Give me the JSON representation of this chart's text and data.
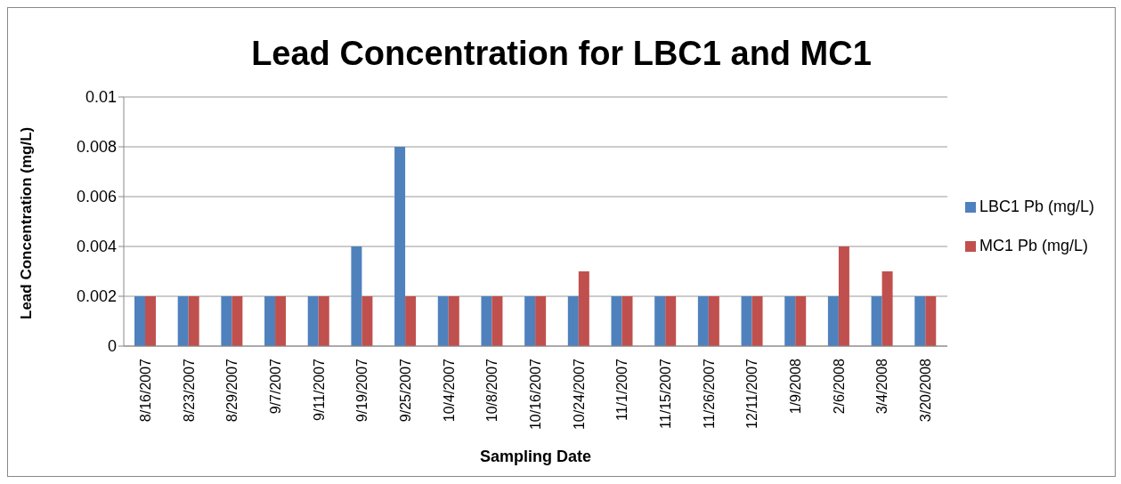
{
  "chart_data": {
    "type": "bar",
    "title": "Lead Concentration for LBC1 and MC1",
    "xlabel": "Sampling Date",
    "ylabel": "Lead Concentration  (mg/L)",
    "categories": [
      "8/16/2007",
      "8/23/2007",
      "8/29/2007",
      "9/7/2007",
      "9/11/2007",
      "9/19/2007",
      "9/25/2007",
      "10/4/2007",
      "10/8/2007",
      "10/16/2007",
      "10/24/2007",
      "11/1/2007",
      "11/15/2007",
      "11/26/2007",
      "12/11/2007",
      "1/9/2008",
      "2/6/2008",
      "3/4/2008",
      "3/20/2008"
    ],
    "series": [
      {
        "name": "LBC1 Pb (mg/L)",
        "color": "#4f81bd",
        "values": [
          0.002,
          0.002,
          0.002,
          0.002,
          0.002,
          0.004,
          0.008,
          0.002,
          0.002,
          0.002,
          0.002,
          0.002,
          0.002,
          0.002,
          0.002,
          0.002,
          0.002,
          0.002,
          0.002
        ]
      },
      {
        "name": "MC1 Pb (mg/L)",
        "color": "#c0504d",
        "values": [
          0.002,
          0.002,
          0.002,
          0.002,
          0.002,
          0.002,
          0.002,
          0.002,
          0.002,
          0.002,
          0.003,
          0.002,
          0.002,
          0.002,
          0.002,
          0.002,
          0.004,
          0.003,
          0.002
        ]
      }
    ],
    "ylim": [
      0,
      0.01
    ],
    "yticks": [
      0,
      0.002,
      0.004,
      0.006,
      0.008,
      0.01
    ],
    "grid": "y",
    "legend": "right"
  }
}
